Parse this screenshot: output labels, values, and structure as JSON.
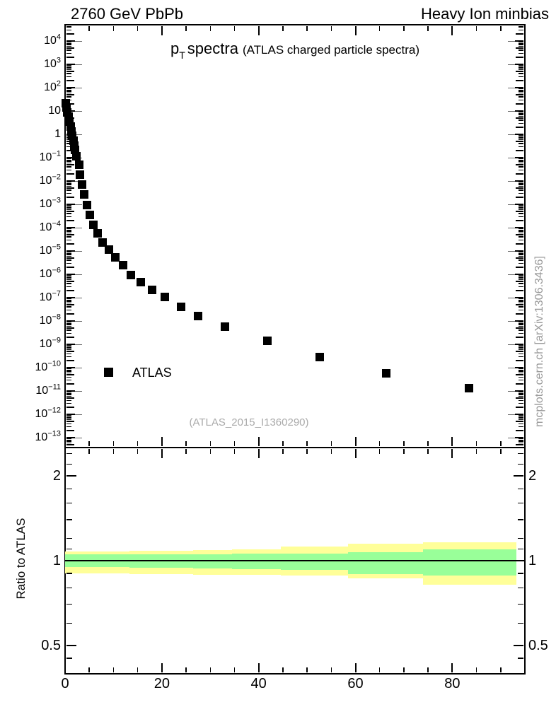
{
  "header": {
    "left": "2760 GeV PbPb",
    "right": "Heavy Ion minbias"
  },
  "title": {
    "main": "p",
    "sub": "T",
    "rest": "spectra",
    "paren": "(ATLAS charged particle spectra)"
  },
  "legend": {
    "label": "ATLAS",
    "marker": "filled-square",
    "marker_color": "#000000"
  },
  "watermark": {
    "text": "(ATLAS_2015_I1360290)",
    "color": "#aaaaaa"
  },
  "side_note": {
    "text": "mcplots.cern.ch [arXiv:1306.3436]",
    "color": "#999999"
  },
  "colors": {
    "band_outer": "#ffff99",
    "band_inner": "#99ff99",
    "marker": "#000000",
    "frame": "#000000"
  },
  "chart_data": {
    "type": "scatter",
    "title": "pT spectra (ATLAS charged particle spectra)",
    "panels": [
      {
        "name": "spectrum",
        "x_scale": "linear",
        "x_range": [
          0,
          95
        ],
        "x_ticks_major": [
          0,
          20,
          40,
          60,
          80
        ],
        "x_tick_minor_step": 5,
        "y_scale": "log",
        "y_range": [
          3.8e-14,
          50000.0
        ],
        "y_label_exponents": [
          4,
          3,
          2,
          1,
          0,
          -1,
          -2,
          -3,
          -4,
          -5,
          -6,
          -7,
          -8,
          -9,
          -10,
          -11,
          -12,
          -13
        ],
        "series": [
          {
            "name": "ATLAS",
            "marker": "filled-square",
            "color": "#000000",
            "points": [
              [
                0.1,
                22
              ],
              [
                0.3,
                14
              ],
              [
                0.5,
                8.7
              ],
              [
                0.7,
                5.6
              ],
              [
                0.9,
                3.5
              ],
              [
                1.1,
                2.1
              ],
              [
                1.3,
                1.35
              ],
              [
                1.5,
                0.86
              ],
              [
                1.7,
                0.54
              ],
              [
                1.9,
                0.34
              ],
              [
                2.1,
                0.21
              ],
              [
                2.35,
                0.115
              ],
              [
                2.85,
                0.05
              ],
              [
                3.1,
                0.019
              ],
              [
                3.5,
                0.0071
              ],
              [
                3.9,
                0.0026
              ],
              [
                4.5,
                0.00093
              ],
              [
                5.1,
                0.00035
              ],
              [
                5.8,
                0.00013
              ],
              [
                6.7,
                5.8e-05
              ],
              [
                7.7,
                2.3e-05
              ],
              [
                9.1,
                1.15e-05
              ],
              [
                10.4,
                5.4e-06
              ],
              [
                12.0,
                2.5e-06
              ],
              [
                13.6,
                9.3e-07
              ],
              [
                15.6,
                4.7e-07
              ],
              [
                18.0,
                2.1e-07
              ],
              [
                20.6,
                1.07e-07
              ],
              [
                24.0,
                4.1e-08
              ],
              [
                27.5,
                1.7e-08
              ],
              [
                33.0,
                5.8e-09
              ],
              [
                41.8,
                1.4e-09
              ],
              [
                52.6,
                2.8e-10
              ],
              [
                66.4,
                5.8e-11
              ],
              [
                83.5,
                1.3e-11
              ]
            ]
          }
        ]
      },
      {
        "name": "ratio",
        "axis_title": "Ratio to ATLAS",
        "x_range": [
          0,
          95
        ],
        "y_scale": "log",
        "y_range": [
          0.3965,
          2.522
        ],
        "y_ticks_major": [
          0.5,
          1,
          2
        ],
        "y_tick_labels": [
          "0.5",
          "1",
          "2"
        ],
        "y_ticks_minor": [
          0.45,
          0.6,
          0.7,
          0.8,
          0.9,
          1.1,
          1.2,
          1.4,
          1.6,
          1.8,
          2.2,
          2.4
        ],
        "reference_line": 1,
        "bands": [
          {
            "x": [
              0,
              13.3
            ],
            "outer": [
              0.9,
              1.08
            ],
            "inner": [
              0.947,
              1.051
            ]
          },
          {
            "x": [
              13.3,
              26.5
            ],
            "outer": [
              0.896,
              1.084
            ],
            "inner": [
              0.944,
              1.053
            ]
          },
          {
            "x": [
              26.5,
              34.5
            ],
            "outer": [
              0.893,
              1.09
            ],
            "inner": [
              0.94,
              1.056
            ]
          },
          {
            "x": [
              34.5,
              44.6
            ],
            "outer": [
              0.89,
              1.096
            ],
            "inner": [
              0.935,
              1.058
            ]
          },
          {
            "x": [
              44.6,
              58.5
            ],
            "outer": [
              0.885,
              1.122
            ],
            "inner": [
              0.928,
              1.059
            ]
          },
          {
            "x": [
              58.5,
              74.0
            ],
            "outer": [
              0.866,
              1.149
            ],
            "inner": [
              0.896,
              1.072
            ]
          },
          {
            "x": [
              74.0,
              93.2
            ],
            "outer": [
              0.822,
              1.162
            ],
            "inner": [
              0.886,
              1.097
            ]
          }
        ]
      }
    ]
  }
}
